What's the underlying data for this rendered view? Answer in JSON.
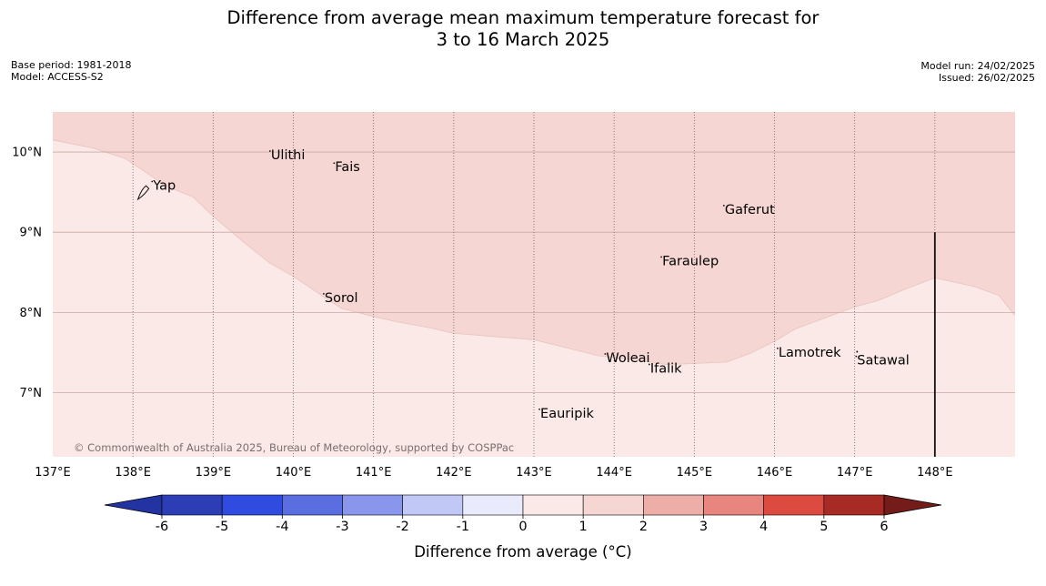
{
  "title": {
    "line1": "Difference from average mean maximum temperature forecast for",
    "line2": "3 to 16 March 2025"
  },
  "meta_left": {
    "base_period": "Base period: 1981-2018",
    "model": "Model: ACCESS-S2"
  },
  "meta_right": {
    "model_run": "Model run: 24/02/2025",
    "issued": "Issued: 26/02/2025"
  },
  "copyright": "© Commonwealth of Australia 2025, Bureau of Meteorology, supported by COSPPac",
  "map": {
    "lon_range": [
      137.0,
      149.0
    ],
    "lat_range": [
      6.2,
      10.5
    ],
    "lon_ticks": [
      137,
      138,
      139,
      140,
      141,
      142,
      143,
      144,
      145,
      146,
      147,
      148
    ],
    "lon_tick_labels": [
      "137°E",
      "138°E",
      "139°E",
      "140°E",
      "141°E",
      "142°E",
      "143°E",
      "144°E",
      "145°E",
      "146°E",
      "147°E",
      "148°E"
    ],
    "lat_ticks": [
      7,
      8,
      9,
      10
    ],
    "lat_tick_labels": [
      "7°N",
      "8°N",
      "9°N",
      "10°N"
    ],
    "anomaly_regions": [
      {
        "category": "0 to 1",
        "color": "#fbe9e7"
      },
      {
        "category": "1 to 2",
        "color": "#f5d6d3"
      }
    ],
    "boundary": [
      [
        137.0,
        10.15
      ],
      [
        137.5,
        10.05
      ],
      [
        137.9,
        9.92
      ],
      [
        138.2,
        9.72
      ],
      [
        138.4,
        9.58
      ],
      [
        138.75,
        9.44
      ],
      [
        139.0,
        9.2
      ],
      [
        139.35,
        8.9
      ],
      [
        139.7,
        8.62
      ],
      [
        140.0,
        8.45
      ],
      [
        140.4,
        8.18
      ],
      [
        140.6,
        8.05
      ],
      [
        141.0,
        7.95
      ],
      [
        141.3,
        7.88
      ],
      [
        141.7,
        7.81
      ],
      [
        142.0,
        7.74
      ],
      [
        142.5,
        7.7
      ],
      [
        143.0,
        7.66
      ],
      [
        143.4,
        7.56
      ],
      [
        143.8,
        7.46
      ],
      [
        144.4,
        7.39
      ],
      [
        144.65,
        7.35
      ],
      [
        144.9,
        7.36
      ],
      [
        145.4,
        7.38
      ],
      [
        145.7,
        7.49
      ],
      [
        146.0,
        7.64
      ],
      [
        146.25,
        7.79
      ],
      [
        146.6,
        7.92
      ],
      [
        147.0,
        8.07
      ],
      [
        147.3,
        8.15
      ],
      [
        147.6,
        8.28
      ],
      [
        148.0,
        8.43
      ],
      [
        148.5,
        8.32
      ],
      [
        148.8,
        8.21
      ],
      [
        148.95,
        8.02
      ],
      [
        149.0,
        7.96
      ]
    ],
    "places": [
      {
        "name": "Yap",
        "lon": 138.25,
        "lat": 9.53
      },
      {
        "name": "Ulithi",
        "lon": 139.72,
        "lat": 9.91
      },
      {
        "name": "Fais",
        "lon": 140.52,
        "lat": 9.76
      },
      {
        "name": "Gaferut",
        "lon": 145.38,
        "lat": 9.23
      },
      {
        "name": "Faraulep",
        "lon": 144.6,
        "lat": 8.59
      },
      {
        "name": "Sorol",
        "lon": 140.39,
        "lat": 8.13
      },
      {
        "name": "Lamotrek",
        "lon": 146.05,
        "lat": 7.45
      },
      {
        "name": "Woleai",
        "lon": 143.9,
        "lat": 7.38
      },
      {
        "name": "Ifalik",
        "lon": 144.45,
        "lat": 7.25
      },
      {
        "name": "Satawal",
        "lon": 147.03,
        "lat": 7.35
      },
      {
        "name": "Eauripik",
        "lon": 143.08,
        "lat": 6.69
      }
    ],
    "vertical_line": {
      "lon": 148.0,
      "lat_top": 9.0
    }
  },
  "colorbar": {
    "label": "Difference from average (°C)",
    "ticks": [
      "-6",
      "-5",
      "-4",
      "-3",
      "-2",
      "-1",
      "0",
      "1",
      "2",
      "3",
      "4",
      "5",
      "6"
    ],
    "colors": [
      "#2334a2",
      "#2c3db6",
      "#2f4be0",
      "#5a6ee2",
      "#8a96ec",
      "#c2c8f5",
      "#e9ebfc",
      "#fbe9e7",
      "#f5d6d3",
      "#edaea8",
      "#e8857e",
      "#dd4a3f",
      "#a82a24",
      "#741c19"
    ]
  }
}
